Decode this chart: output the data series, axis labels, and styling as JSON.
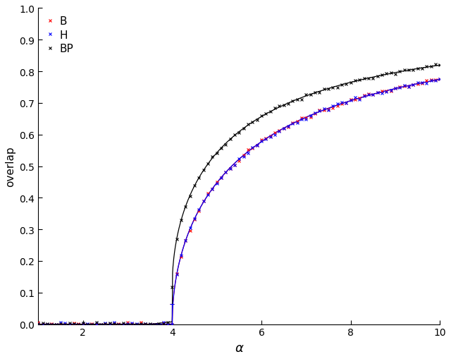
{
  "title": "",
  "xlabel": "α",
  "ylabel": "overlap",
  "xlim": [
    1,
    10
  ],
  "ylim": [
    0,
    1
  ],
  "xticks": [
    2,
    4,
    6,
    8,
    10
  ],
  "yticks": [
    0,
    0.1,
    0.2,
    0.3,
    0.4,
    0.5,
    0.6,
    0.7,
    0.8,
    0.9,
    1
  ],
  "legend_labels": [
    "B",
    "H",
    "BP"
  ],
  "colors": [
    "red",
    "blue",
    "black"
  ],
  "background_color": "#ffffff",
  "figsize": [
    6.4,
    5.1
  ],
  "dpi": 100,
  "alpha_c_BH": 4.0,
  "alpha_c_BP": 3.5,
  "marker_step": 0.1,
  "smooth_points": 1000,
  "err_x": [
    4.0
  ],
  "err_y_B": [
    0.065
  ],
  "err_y_H": [
    0.065
  ],
  "err_vals_B": [
    0.065
  ],
  "err_vals_H": [
    0.065
  ]
}
